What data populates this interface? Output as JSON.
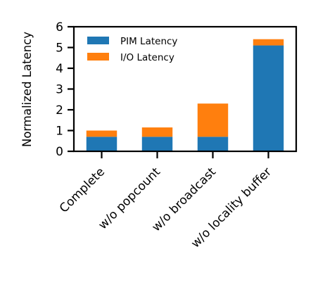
{
  "chart_data": {
    "type": "bar",
    "stacked": true,
    "categories": [
      "Complete",
      "w/o popcount",
      "w/o broadcast",
      "w/o locality buffer"
    ],
    "series": [
      {
        "name": "PIM Latency",
        "color": "#1f77b4",
        "values": [
          0.7,
          0.7,
          0.7,
          5.1
        ]
      },
      {
        "name": "I/O Latency",
        "color": "#ff7f0e",
        "values": [
          0.3,
          0.45,
          1.6,
          0.3
        ]
      }
    ],
    "ylabel": "Normalized Latency",
    "xlabel": "",
    "ylim": [
      0,
      6
    ],
    "yticks": [
      "0",
      "1",
      "2",
      "3",
      "4",
      "5",
      "6"
    ],
    "legend_position": "top-left",
    "grid": false
  }
}
